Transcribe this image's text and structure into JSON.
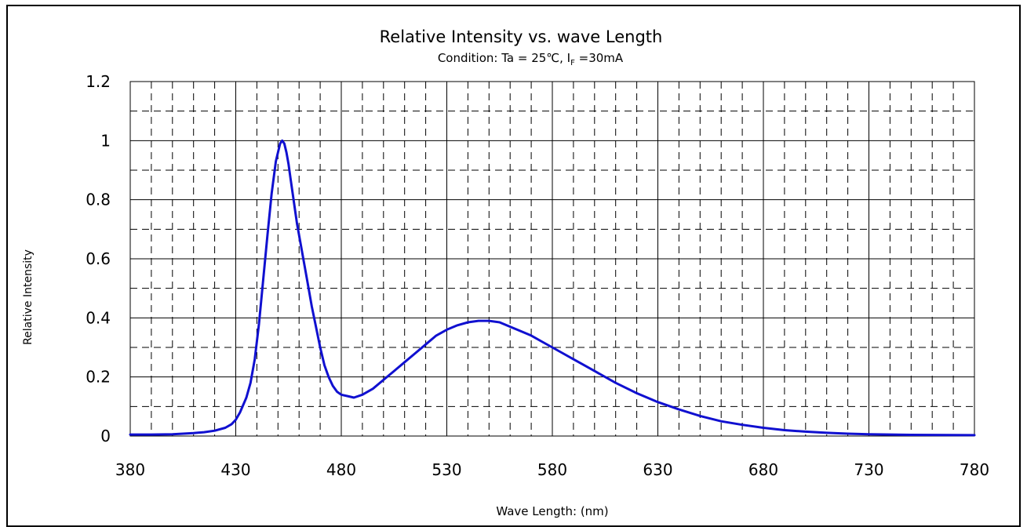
{
  "chart_data": {
    "type": "line",
    "title": "Relative Intensity vs. wave Length",
    "subtitle": {
      "prefix": "Condition: Ta = 25℃, I",
      "subscript": "F",
      "suffix": " =30mA"
    },
    "xlabel": "Wave Length: (nm)",
    "ylabel": "Relative Intensity",
    "xlim": [
      380,
      780
    ],
    "ylim": [
      0,
      1.2
    ],
    "x_ticks": [
      380,
      430,
      480,
      530,
      580,
      630,
      680,
      730,
      780
    ],
    "x_tick_labels": [
      "380",
      "430",
      "480",
      "530",
      "580",
      "630",
      "680",
      "730",
      "780"
    ],
    "y_ticks": [
      0,
      0.2,
      0.4,
      0.6,
      0.8,
      1.0,
      1.2
    ],
    "y_tick_labels": [
      "0",
      "0.2",
      "0.4",
      "0.6",
      "0.8",
      "1",
      "1.2"
    ],
    "grid": true,
    "series_color": "#1010d0",
    "series": [
      {
        "x": [
          380,
          390,
          400,
          405,
          410,
          415,
          420,
          425,
          428,
          430,
          432,
          435,
          437,
          439,
          441,
          443,
          445,
          447,
          449,
          451,
          452,
          453,
          454,
          455,
          456,
          457,
          458,
          459,
          460,
          462,
          464,
          466,
          468,
          470,
          472,
          474,
          476,
          478,
          480,
          483,
          486,
          490,
          495,
          500,
          505,
          510,
          515,
          520,
          525,
          530,
          535,
          540,
          545,
          550,
          555,
          560,
          565,
          570,
          575,
          580,
          585,
          590,
          595,
          600,
          610,
          620,
          630,
          640,
          650,
          660,
          670,
          680,
          690,
          700,
          710,
          720,
          730,
          750,
          780
        ],
        "y": [
          0.005,
          0.005,
          0.006,
          0.008,
          0.01,
          0.013,
          0.018,
          0.028,
          0.04,
          0.055,
          0.08,
          0.13,
          0.18,
          0.26,
          0.38,
          0.53,
          0.68,
          0.82,
          0.93,
          0.99,
          1.0,
          0.99,
          0.96,
          0.92,
          0.87,
          0.82,
          0.77,
          0.72,
          0.68,
          0.6,
          0.52,
          0.44,
          0.37,
          0.3,
          0.24,
          0.2,
          0.17,
          0.15,
          0.14,
          0.135,
          0.13,
          0.14,
          0.16,
          0.19,
          0.22,
          0.25,
          0.28,
          0.31,
          0.34,
          0.36,
          0.375,
          0.385,
          0.39,
          0.39,
          0.385,
          0.37,
          0.355,
          0.34,
          0.32,
          0.3,
          0.28,
          0.26,
          0.24,
          0.22,
          0.18,
          0.145,
          0.115,
          0.09,
          0.068,
          0.05,
          0.038,
          0.028,
          0.02,
          0.015,
          0.011,
          0.008,
          0.006,
          0.004,
          0.003
        ]
      }
    ]
  }
}
